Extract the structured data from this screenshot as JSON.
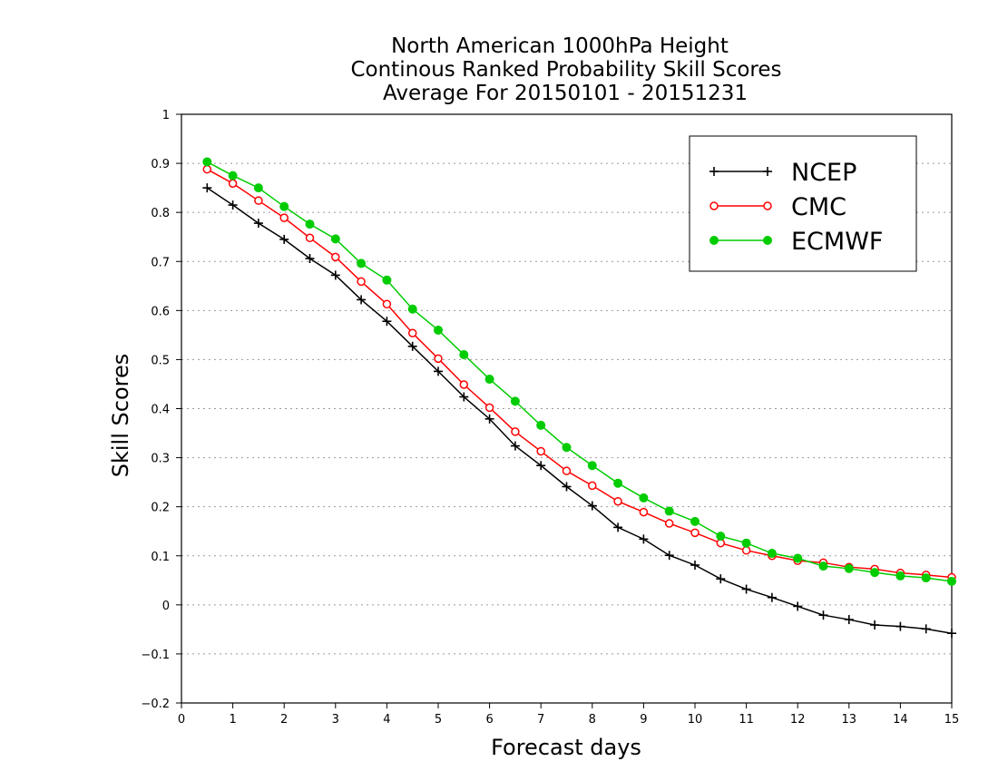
{
  "chart_data": {
    "type": "line",
    "title_lines": [
      "North American 1000hPa Height",
      "Continous Ranked Probability Skill Scores",
      "Average For 20150101 - 20151231"
    ],
    "xlabel": "Forecast days",
    "ylabel": "Skill Scores",
    "xlim": [
      0,
      15
    ],
    "ylim": [
      -0.2,
      1
    ],
    "x_ticks": [
      "0",
      "1",
      "2",
      "3",
      "4",
      "5",
      "6",
      "7",
      "8",
      "9",
      "10",
      "11",
      "12",
      "13",
      "14",
      "15"
    ],
    "y_ticks": [
      "1",
      "0.9",
      "0.8",
      "0.7",
      "0.6",
      "0.5",
      "0.4",
      "0.3",
      "0.2",
      "0.1",
      "0",
      "−0.1",
      "−0.2"
    ],
    "grid": "horizontal dotted",
    "legend_position": "top-right",
    "x": [
      0.5,
      1,
      1.5,
      2,
      2.5,
      3,
      3.5,
      4,
      4.5,
      5,
      5.5,
      6,
      6.5,
      7,
      7.5,
      8,
      8.5,
      9,
      9.5,
      10,
      10.5,
      11,
      11.5,
      12,
      12.5,
      13,
      13.5,
      14,
      14.5,
      15
    ],
    "series": [
      {
        "name": "NCEP",
        "color": "#000000",
        "marker": "plus",
        "values": [
          0.85,
          0.815,
          0.778,
          0.745,
          0.706,
          0.672,
          0.622,
          0.578,
          0.527,
          0.476,
          0.424,
          0.379,
          0.324,
          0.284,
          0.241,
          0.202,
          0.158,
          0.134,
          0.101,
          0.081,
          0.053,
          0.032,
          0.015,
          -0.003,
          -0.021,
          -0.03,
          -0.041,
          -0.044,
          -0.049,
          -0.058
        ]
      },
      {
        "name": "CMC",
        "color": "#ff0000",
        "marker": "open-circle",
        "values": [
          0.888,
          0.859,
          0.824,
          0.789,
          0.748,
          0.709,
          0.659,
          0.613,
          0.554,
          0.502,
          0.449,
          0.402,
          0.353,
          0.313,
          0.273,
          0.243,
          0.211,
          0.189,
          0.166,
          0.147,
          0.126,
          0.111,
          0.1,
          0.09,
          0.086,
          0.077,
          0.073,
          0.065,
          0.061,
          0.056
        ]
      },
      {
        "name": "ECMWF",
        "color": "#00cc00",
        "marker": "filled-circle",
        "values": [
          0.903,
          0.875,
          0.85,
          0.812,
          0.776,
          0.746,
          0.696,
          0.662,
          0.603,
          0.56,
          0.51,
          0.46,
          0.415,
          0.366,
          0.321,
          0.284,
          0.248,
          0.218,
          0.191,
          0.17,
          0.14,
          0.126,
          0.105,
          0.095,
          0.079,
          0.074,
          0.066,
          0.059,
          0.055,
          0.048
        ]
      }
    ]
  }
}
